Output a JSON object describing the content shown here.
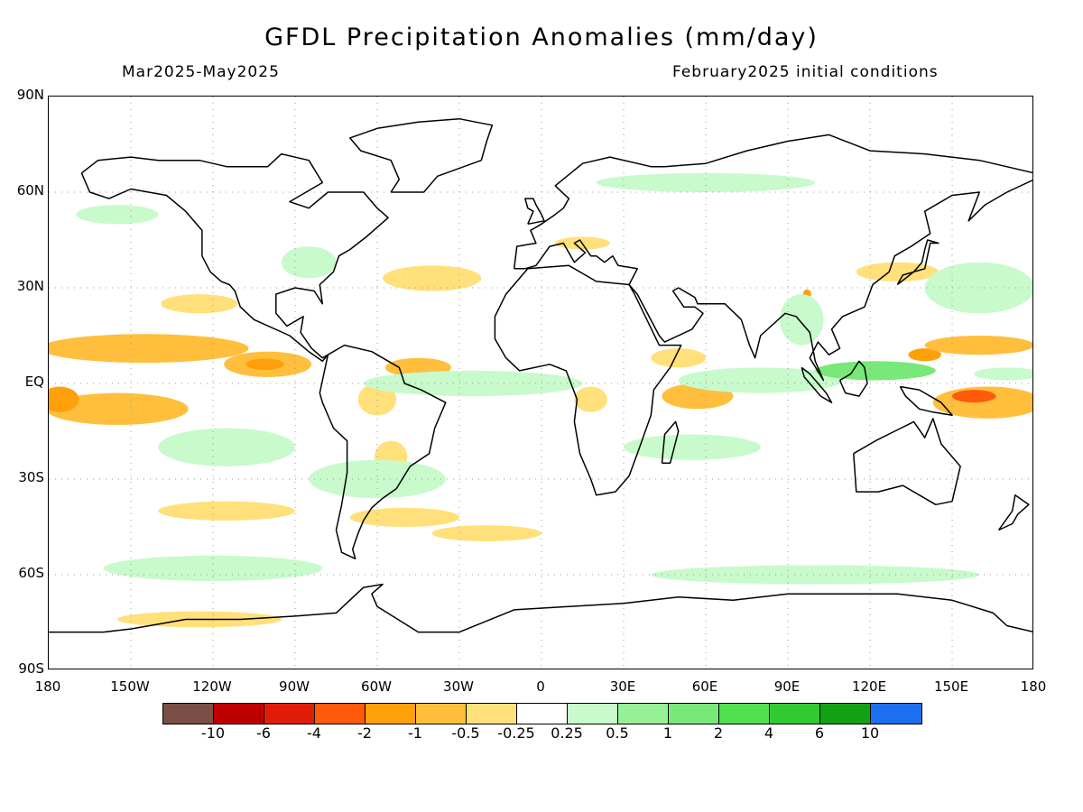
{
  "title": "GFDL Precipitation Anomalies (mm/day)",
  "period": "Mar2025-May2025",
  "init": "February2025 initial conditions",
  "lat_labels": [
    "90N",
    "60N",
    "30N",
    "EQ",
    "30S",
    "60S",
    "90S"
  ],
  "lon_labels": [
    "180",
    "150W",
    "120W",
    "90W",
    "60W",
    "30W",
    "0",
    "30E",
    "60E",
    "90E",
    "120E",
    "150E",
    "180"
  ],
  "colorbar": {
    "colors": [
      "#7a4f45",
      "#bf0000",
      "#e11d0a",
      "#ff5a0a",
      "#ff9f0a",
      "#ffbe3c",
      "#ffe07a",
      "#ffffff",
      "#c8facb",
      "#96f096",
      "#78e878",
      "#50e050",
      "#33c933",
      "#14a014",
      "#1e6ef0"
    ],
    "labels": [
      "-10",
      "-6",
      "-4",
      "-2",
      "-1",
      "-0.5",
      "-0.25",
      "0.25",
      "0.5",
      "1",
      "2",
      "4",
      "6",
      "10"
    ]
  },
  "map_data": {
    "type": "anomaly-map",
    "x_range": [
      -180,
      180
    ],
    "y_range": [
      -90,
      90
    ],
    "grid": true,
    "anomaly_regions": [
      {
        "class": 2,
        "cx": -145,
        "cy": 11,
        "rx": 38,
        "ry": 4.5
      },
      {
        "class": 2,
        "cx": -155,
        "cy": -8,
        "rx": 26,
        "ry": 5
      },
      {
        "class": 3,
        "cx": -176,
        "cy": -5,
        "rx": 7,
        "ry": 4
      },
      {
        "class": 2,
        "cx": -100,
        "cy": 6,
        "rx": 16,
        "ry": 4
      },
      {
        "class": 3,
        "cx": -101,
        "cy": 6,
        "rx": 7,
        "ry": 1.8
      },
      {
        "class": 2,
        "cx": -45,
        "cy": 5,
        "rx": 12,
        "ry": 3
      },
      {
        "class": 1,
        "cx": -60,
        "cy": -5,
        "rx": 7,
        "ry": 5
      },
      {
        "class": 1,
        "cx": -55,
        "cy": -23,
        "rx": 6,
        "ry": 5
      },
      {
        "class": 1,
        "cx": -125,
        "cy": 25,
        "rx": 14,
        "ry": 3
      },
      {
        "class": 1,
        "cx": -115,
        "cy": -40,
        "rx": 25,
        "ry": 3
      },
      {
        "class": 1,
        "cx": -50,
        "cy": -42,
        "rx": 20,
        "ry": 3
      },
      {
        "class": 1,
        "cx": -20,
        "cy": -47,
        "rx": 20,
        "ry": 2.5
      },
      {
        "class": 1,
        "cx": -125,
        "cy": -74,
        "rx": 30,
        "ry": 2.5
      },
      {
        "class": 1,
        "cx": -40,
        "cy": 33,
        "rx": 18,
        "ry": 4
      },
      {
        "class": 1,
        "cx": 50,
        "cy": 8,
        "rx": 10,
        "ry": 3
      },
      {
        "class": 2,
        "cx": 57,
        "cy": -4,
        "rx": 13,
        "ry": 4
      },
      {
        "class": 1,
        "cx": 18,
        "cy": -5,
        "rx": 6,
        "ry": 4
      },
      {
        "class": 3,
        "cx": 140,
        "cy": 9,
        "rx": 6,
        "ry": 2
      },
      {
        "class": 2,
        "cx": 160,
        "cy": 12,
        "rx": 20,
        "ry": 3
      },
      {
        "class": 2,
        "cx": 163,
        "cy": -6,
        "rx": 20,
        "ry": 5
      },
      {
        "class": 4,
        "cx": 158,
        "cy": -4,
        "rx": 8,
        "ry": 2
      },
      {
        "class": 1,
        "cx": 130,
        "cy": 35,
        "rx": 15,
        "ry": 3
      },
      {
        "class": 3,
        "cx": 97,
        "cy": 28,
        "rx": 1.5,
        "ry": 1.5
      },
      {
        "class": 1,
        "cx": 15,
        "cy": 44,
        "rx": 10,
        "ry": 2
      },
      {
        "class": -1,
        "cx": -25,
        "cy": 0,
        "rx": 40,
        "ry": 4
      },
      {
        "class": -1,
        "cx": 80,
        "cy": 1,
        "rx": 30,
        "ry": 4
      },
      {
        "class": -2,
        "cx": 122,
        "cy": 4,
        "rx": 22,
        "ry": 3
      },
      {
        "class": -1,
        "cx": 170,
        "cy": 3,
        "rx": 12,
        "ry": 2
      },
      {
        "class": -1,
        "cx": 160,
        "cy": 30,
        "rx": 20,
        "ry": 8
      },
      {
        "class": -1,
        "cx": 95,
        "cy": 20,
        "rx": 8,
        "ry": 8
      },
      {
        "class": -1,
        "cx": 55,
        "cy": -20,
        "rx": 25,
        "ry": 4
      },
      {
        "class": -1,
        "cx": -115,
        "cy": -20,
        "rx": 25,
        "ry": 6
      },
      {
        "class": -1,
        "cx": -60,
        "cy": -30,
        "rx": 25,
        "ry": 6
      },
      {
        "class": -1,
        "cx": 100,
        "cy": -60,
        "rx": 60,
        "ry": 3
      },
      {
        "class": -1,
        "cx": -120,
        "cy": -58,
        "rx": 40,
        "ry": 4
      },
      {
        "class": -1,
        "cx": 60,
        "cy": 63,
        "rx": 40,
        "ry": 3
      },
      {
        "class": -1,
        "cx": -85,
        "cy": 38,
        "rx": 10,
        "ry": 5
      },
      {
        "class": -1,
        "cx": -155,
        "cy": 53,
        "rx": 15,
        "ry": 3
      }
    ]
  }
}
